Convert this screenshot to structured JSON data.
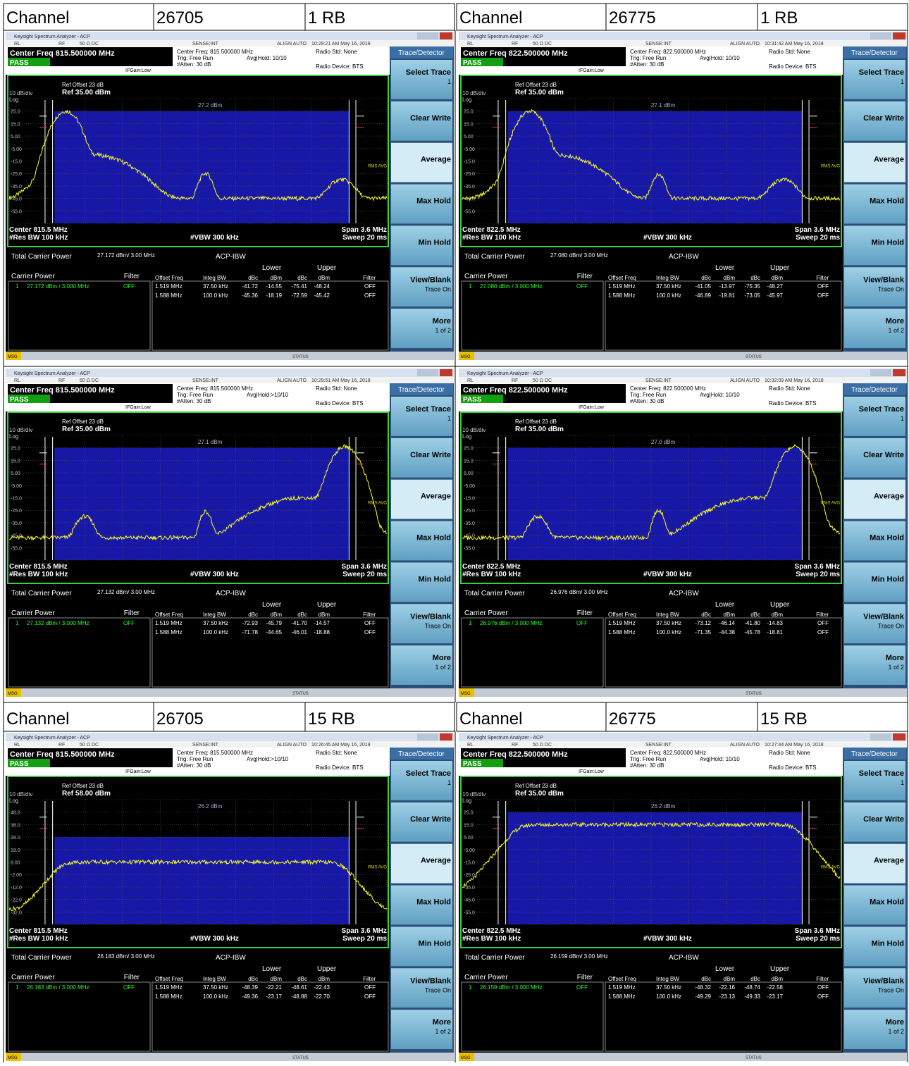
{
  "headers": [
    [
      [
        "Channel",
        "26705",
        "1 RB"
      ],
      [
        "Channel",
        "26775",
        "1 RB"
      ]
    ],
    [
      [
        "Channel",
        "26705",
        "15 RB"
      ],
      [
        "Channel",
        "26775",
        "15 RB"
      ]
    ]
  ],
  "common": {
    "app_title": "Keysight Spectrum Analyzer - ACP",
    "status_row": [
      "RL",
      "RF",
      "50 Ω  DC",
      "SENSE:INT",
      "ALIGN AUTO"
    ],
    "pass": "PASS",
    "ifgain": "IFGain:Low",
    "trig": "Trig: Free Run",
    "atten": "#Atten: 30 dB",
    "radio_std": "Radio Std: None",
    "radio_device": "Radio Device: BTS",
    "ref_offset": "Ref Offset 23 dB",
    "scale": "10 dB/div",
    "log": "Log",
    "detector": "RMS AVG",
    "res_bw": "#Res BW  100 kHz",
    "vbw": "#VBW  300 kHz",
    "span": "Span 3.6 MHz",
    "sweep": "Sweep  20 ms",
    "total_carrier_power_label": "Total Carrier Power",
    "acp_mode": "ACP-IBW",
    "carrier_header": [
      "Carrier Power",
      "Filter"
    ],
    "table_groups": [
      "Lower",
      "Upper"
    ],
    "table_header": [
      "Offset Freq",
      "Integ BW",
      "dBc",
      "dBm",
      "dBc",
      "dBm",
      "Filter"
    ],
    "softkey_title": "Trace/Detector",
    "softkeys": [
      [
        "Select Trace",
        "1"
      ],
      [
        "Clear Write"
      ],
      [
        "Average"
      ],
      [
        "Max Hold"
      ],
      [
        "Min Hold"
      ],
      [
        "View/Blank",
        "Trace On"
      ],
      [
        "More",
        "1 of 2"
      ]
    ],
    "msg": "MSG",
    "status": "STATUS"
  },
  "panels": [
    {
      "time": "10:29:21 AM May 16, 2018",
      "center_freq_title": "Center Freq 815.500000 MHz",
      "center_freq": "Center Freq: 815.500000 MHz",
      "avg_hold": "Avg|Hold: 10/10",
      "ref_level": "Ref 35.00 dBm",
      "y_labels": [
        "25.0",
        "15.0",
        "5.00",
        "-5.00",
        "-15.0",
        "-25.0",
        "-35.0",
        "-45.0",
        "-55.0"
      ],
      "marker_text": "27.2 dBm",
      "center": "Center  815.5 MHz",
      "total_carrier_power": "27.172 dBm/ 3.00 MHz",
      "carrier_row": [
        "1",
        "27.172 dBm /  3.000 MHz",
        "OFF"
      ],
      "table_rows": [
        [
          "1.519 MHz",
          "37.50 kHz",
          "-41.72",
          "-14.55",
          "-75.41",
          "-48.24",
          "OFF"
        ],
        [
          "1.588 MHz",
          "100.0 kHz",
          "-45.36",
          "-18.19",
          "-72.59",
          "-45.42",
          "OFF"
        ]
      ]
    },
    {
      "time": "10:31:42 AM May 16, 2018",
      "center_freq_title": "Center Freq 822.500000 MHz",
      "center_freq": "Center Freq: 822.500000 MHz",
      "avg_hold": "Avg|Hold: 10/10",
      "ref_level": "Ref 35.00 dBm",
      "y_labels": [
        "25.0",
        "15.0",
        "5.00",
        "-5.00",
        "-15.0",
        "-25.0",
        "-35.0",
        "-45.0",
        "-55.0"
      ],
      "marker_text": "27.1 dBm",
      "center": "Center  822.5 MHz",
      "total_carrier_power": "27.080 dBm/ 3.00 MHz",
      "carrier_row": [
        "1",
        "27.080 dBm /  3.000 MHz",
        "OFF"
      ],
      "table_rows": [
        [
          "1.519 MHz",
          "37.50 kHz",
          "-41.05",
          "-13.97",
          "-75.35",
          "-48.27",
          "OFF"
        ],
        [
          "1.588 MHz",
          "100.0 kHz",
          "-46.89",
          "-19.81",
          "-73.05",
          "-45.97",
          "OFF"
        ]
      ]
    },
    {
      "time": "10:29:51 AM May 16, 2018",
      "center_freq_title": "Center Freq 815.500000 MHz",
      "center_freq": "Center Freq: 815.500000 MHz",
      "avg_hold": "Avg|Hold:>10/10",
      "ref_level": "Ref 35.00 dBm",
      "y_labels": [
        "25.0",
        "15.0",
        "5.00",
        "-5.00",
        "-15.0",
        "-25.0",
        "-35.0",
        "-45.0",
        "-55.0"
      ],
      "marker_text": "27.1 dBm",
      "center": "Center  815.5 MHz",
      "total_carrier_power": "27.132 dBm/ 3.00 MHz",
      "carrier_row": [
        "1",
        "27.132 dBm /  3.000 MHz",
        "OFF"
      ],
      "table_rows": [
        [
          "1.519 MHz",
          "37.50 kHz",
          "-72.93",
          "-45.79",
          "-41.70",
          "-14.57",
          "OFF"
        ],
        [
          "1.588 MHz",
          "100.0 kHz",
          "-71.78",
          "-44.65",
          "-46.01",
          "-18.88",
          "OFF"
        ]
      ]
    },
    {
      "time": "10:32:09 AM May 16, 2018",
      "center_freq_title": "Center Freq 822.500000 MHz",
      "center_freq": "Center Freq: 822.500000 MHz",
      "avg_hold": "Avg|Hold: 10/10",
      "ref_level": "Ref 35.00 dBm",
      "y_labels": [
        "25.0",
        "15.0",
        "5.00",
        "-5.00",
        "-15.0",
        "-25.0",
        "-35.0",
        "-45.0",
        "-55.0"
      ],
      "marker_text": "27.0 dBm",
      "center": "Center  822.5 MHz",
      "total_carrier_power": "26.976 dBm/ 3.00 MHz",
      "carrier_row": [
        "1",
        "26.976 dBm /  3.000 MHz",
        "OFF"
      ],
      "table_rows": [
        [
          "1.519 MHz",
          "37.50 kHz",
          "-73.12",
          "-46.14",
          "-41.80",
          "-14.83",
          "OFF"
        ],
        [
          "1.588 MHz",
          "100.0 kHz",
          "-71.35",
          "-44.38",
          "-45.78",
          "-18.81",
          "OFF"
        ]
      ]
    },
    {
      "time": "10:26:45 AM May 16, 2018",
      "center_freq_title": "Center Freq 815.500000 MHz",
      "center_freq": "Center Freq: 815.500000 MHz",
      "avg_hold": "Avg|Hold:>10/10",
      "ref_level": "Ref 58.00 dBm",
      "y_labels": [
        "48.0",
        "38.0",
        "28.0",
        "18.0",
        "8.00",
        "-2.00",
        "-12.0",
        "-22.0",
        "-32.0"
      ],
      "marker_text": "26.2 dBm",
      "center": "Center  815.5 MHz",
      "total_carrier_power": "26.183 dBm/ 3.00 MHz",
      "carrier_row": [
        "1",
        "26.183 dBm /  3.000 MHz",
        "OFF"
      ],
      "table_rows": [
        [
          "1.519 MHz",
          "37.50 kHz",
          "-48.39",
          "-22.21",
          "-48.61",
          "-22.43",
          "OFF"
        ],
        [
          "1.588 MHz",
          "100.0 kHz",
          "-49.36",
          "-23.17",
          "-48.88",
          "-22.70",
          "OFF"
        ]
      ]
    },
    {
      "time": "10:27:44 AM May 16, 2018",
      "center_freq_title": "Center Freq 822.500000 MHz",
      "center_freq": "Center Freq: 822.500000 MHz",
      "avg_hold": "Avg|Hold: 10/10",
      "ref_level": "Ref 35.00 dBm",
      "y_labels": [
        "25.0",
        "15.0",
        "5.00",
        "-5.00",
        "-15.0",
        "-25.0",
        "-35.0",
        "-45.0",
        "-55.0"
      ],
      "marker_text": "26.2 dBm",
      "center": "Center  822.5 MHz",
      "total_carrier_power": "26.159 dBm/ 3.00 MHz",
      "carrier_row": [
        "1",
        "26.159 dBm /  3.000 MHz",
        "OFF"
      ],
      "table_rows": [
        [
          "1.519 MHz",
          "37.50 kHz",
          "-48.32",
          "-22.16",
          "-48.74",
          "-22.58",
          "OFF"
        ],
        [
          "1.588 MHz",
          "100.0 kHz",
          "-49.29",
          "-23.13",
          "-49.33",
          "-23.17",
          "OFF"
        ]
      ]
    }
  ]
}
